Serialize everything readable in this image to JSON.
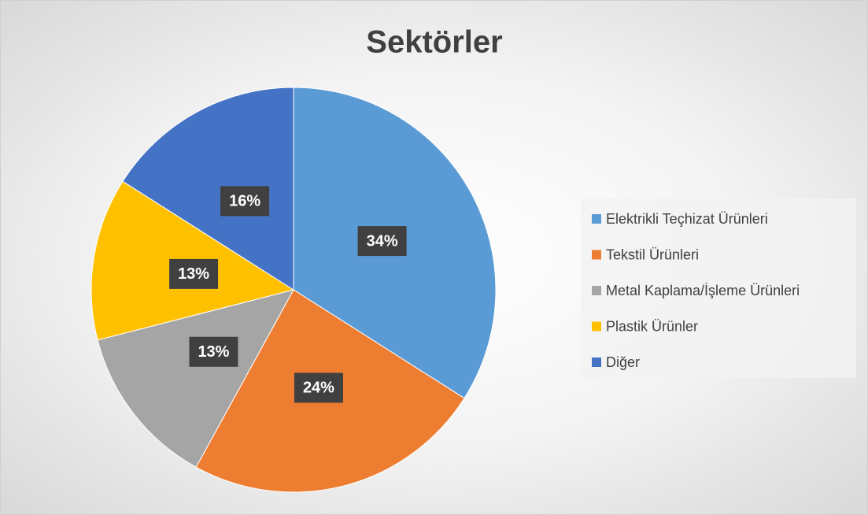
{
  "chart_data": {
    "type": "pie",
    "title": "Sektörler",
    "categories": [
      "Elektrikli Teçhizat Ürünleri",
      "Tekstil Ürünleri",
      "Metal Kaplama/İşleme Ürünleri",
      "Plastik Ürünler",
      "Diğer"
    ],
    "values": [
      34,
      24,
      13,
      13,
      16
    ],
    "value_labels": [
      "34%",
      "24%",
      "13%",
      "13%",
      "16%"
    ],
    "colors": [
      "#5b9bd5",
      "#ed7d31",
      "#a5a5a5",
      "#ffc000",
      "#4472c4"
    ],
    "legend": "right"
  }
}
